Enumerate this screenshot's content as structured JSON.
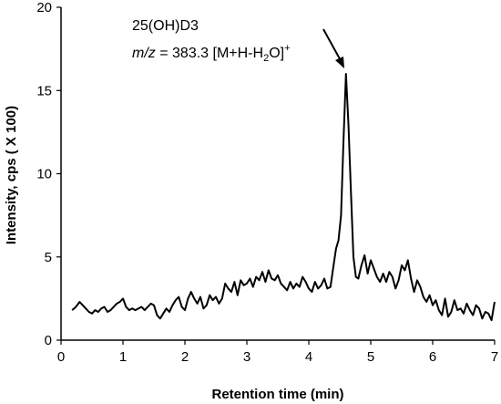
{
  "chart_data": {
    "type": "line",
    "title": "",
    "xlabel": "Retention time (min)",
    "ylabel": "Intensity, cps ( X 100)",
    "xlim": [
      0,
      7
    ],
    "ylim": [
      0,
      20
    ],
    "x_ticks": [
      0,
      1,
      2,
      3,
      4,
      5,
      6,
      7
    ],
    "y_ticks": [
      0,
      5,
      10,
      15,
      20
    ],
    "grid": false,
    "legend": "none",
    "line_color": "#000000",
    "annotation": {
      "line1": "25(OH)D3",
      "mz_label": "m/z",
      "mz_rest": " = 383.3 [M+H-H",
      "sub": "2",
      "tail": "O]",
      "sup": "+",
      "points_to": [
        4.56,
        16.0
      ]
    },
    "series": [
      {
        "x": [
          0.18,
          0.24,
          0.3,
          0.35,
          0.4,
          0.45,
          0.5,
          0.55,
          0.6,
          0.65,
          0.7,
          0.75,
          0.8,
          0.85,
          0.9,
          0.95,
          1.0,
          1.05,
          1.1,
          1.15,
          1.2,
          1.25,
          1.3,
          1.35,
          1.4,
          1.45,
          1.5,
          1.55,
          1.6,
          1.65,
          1.7,
          1.75,
          1.8,
          1.85,
          1.9,
          1.95,
          2.0,
          2.05,
          2.1,
          2.15,
          2.2,
          2.25,
          2.3,
          2.35,
          2.4,
          2.45,
          2.5,
          2.55,
          2.6,
          2.65,
          2.7,
          2.75,
          2.8,
          2.85,
          2.9,
          2.95,
          3.0,
          3.05,
          3.1,
          3.15,
          3.2,
          3.25,
          3.3,
          3.35,
          3.4,
          3.45,
          3.5,
          3.55,
          3.6,
          3.65,
          3.7,
          3.75,
          3.8,
          3.85,
          3.9,
          3.95,
          4.0,
          4.05,
          4.1,
          4.15,
          4.2,
          4.25,
          4.3,
          4.35,
          4.4,
          4.44,
          4.48,
          4.52,
          4.56,
          4.6,
          4.64,
          4.68,
          4.72,
          4.76,
          4.8,
          4.85,
          4.9,
          4.95,
          5.0,
          5.05,
          5.1,
          5.15,
          5.2,
          5.25,
          5.3,
          5.35,
          5.4,
          5.45,
          5.5,
          5.55,
          5.6,
          5.65,
          5.7,
          5.75,
          5.8,
          5.85,
          5.9,
          5.95,
          6.0,
          6.05,
          6.1,
          6.15,
          6.2,
          6.25,
          6.3,
          6.35,
          6.4,
          6.45,
          6.5,
          6.55,
          6.6,
          6.65,
          6.7,
          6.75,
          6.8,
          6.85,
          6.9,
          6.95,
          7.0
        ],
        "y": [
          1.8,
          2.0,
          2.3,
          2.1,
          1.9,
          1.7,
          1.6,
          1.8,
          1.7,
          1.9,
          2.0,
          1.7,
          1.8,
          2.0,
          2.2,
          2.3,
          2.5,
          2.0,
          1.8,
          1.9,
          1.8,
          1.9,
          2.0,
          1.8,
          2.0,
          2.2,
          2.1,
          1.5,
          1.3,
          1.6,
          1.9,
          1.7,
          2.1,
          2.4,
          2.6,
          2.0,
          1.8,
          2.5,
          2.9,
          2.5,
          2.2,
          2.6,
          1.9,
          2.1,
          2.7,
          2.4,
          2.6,
          2.2,
          2.5,
          3.4,
          3.1,
          2.9,
          3.5,
          2.7,
          3.6,
          3.3,
          3.4,
          3.7,
          3.2,
          3.8,
          3.6,
          4.1,
          3.5,
          4.2,
          3.7,
          3.6,
          3.9,
          3.4,
          3.2,
          3.0,
          3.5,
          3.1,
          3.4,
          3.2,
          3.8,
          3.5,
          3.1,
          2.9,
          3.5,
          3.1,
          3.3,
          3.7,
          3.1,
          3.2,
          4.5,
          5.5,
          6.0,
          7.5,
          12.0,
          16.0,
          13.0,
          9.0,
          5.0,
          3.8,
          3.7,
          4.5,
          5.1,
          4.0,
          4.8,
          4.3,
          3.8,
          3.5,
          4.0,
          3.5,
          4.1,
          3.8,
          3.1,
          3.6,
          4.5,
          4.2,
          4.8,
          3.7,
          2.9,
          3.6,
          3.2,
          2.6,
          2.3,
          2.7,
          2.1,
          2.4,
          1.8,
          1.5,
          2.5,
          1.4,
          1.7,
          2.4,
          1.8,
          1.9,
          1.6,
          2.2,
          1.8,
          1.5,
          2.1,
          1.9,
          1.3,
          1.7,
          1.6,
          1.2,
          2.3
        ]
      }
    ]
  }
}
